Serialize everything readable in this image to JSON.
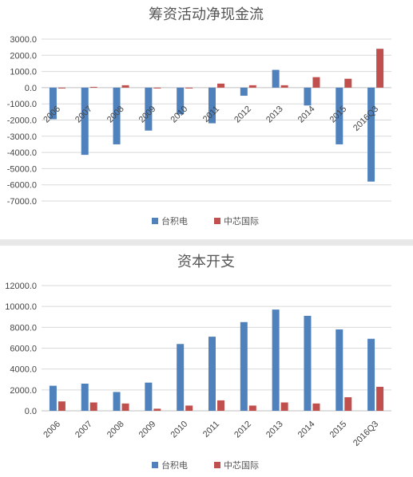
{
  "colors": {
    "tsmc": "#4f81bd",
    "smic": "#c0504d",
    "grid": "#d9d9d9",
    "axis": "#bfbfbf"
  },
  "chart_data": [
    {
      "type": "bar",
      "title": "筹资活动净现金流",
      "categories": [
        "2006",
        "2007",
        "2008",
        "2009",
        "2010",
        "2011",
        "2012",
        "2013",
        "2014",
        "2015",
        "2016Q3"
      ],
      "series": [
        {
          "name": "台积电",
          "values": [
            -1950,
            -4150,
            -3500,
            -2650,
            -1650,
            -2200,
            -500,
            1100,
            -1100,
            -3500,
            -5800
          ]
        },
        {
          "name": "中芯国际",
          "values": [
            -50,
            50,
            150,
            -50,
            -50,
            250,
            150,
            150,
            650,
            550,
            2400
          ]
        }
      ],
      "ylim": [
        -7000,
        3000
      ],
      "yticks": [
        3000,
        2000,
        1000,
        0,
        -1000,
        -2000,
        -3000,
        -4000,
        -5000,
        -6000,
        -7000
      ],
      "ytick_labels": [
        "3000.0",
        "2000.0",
        "1000.0",
        "0.0",
        "-1000.0",
        "-2000.0",
        "-3000.0",
        "-4000.0",
        "-5000.0",
        "-6000.0",
        "-7000.0"
      ],
      "grid": true,
      "legend": "bottom"
    },
    {
      "type": "bar",
      "title": "资本开支",
      "categories": [
        "2006",
        "2007",
        "2008",
        "2009",
        "2010",
        "2011",
        "2012",
        "2013",
        "2014",
        "2015",
        "2016Q3"
      ],
      "series": [
        {
          "name": "台积电",
          "values": [
            2400,
            2600,
            1800,
            2700,
            6400,
            7100,
            8500,
            9700,
            9100,
            7800,
            6900
          ]
        },
        {
          "name": "中芯国际",
          "values": [
            900,
            800,
            700,
            200,
            500,
            1000,
            500,
            800,
            700,
            1300,
            2300
          ]
        }
      ],
      "ylim": [
        0,
        12000
      ],
      "yticks": [
        0,
        2000,
        4000,
        6000,
        8000,
        10000,
        12000
      ],
      "ytick_labels": [
        "0.0",
        "2000.0",
        "4000.0",
        "6000.0",
        "8000.0",
        "10000.0",
        "12000.0"
      ],
      "grid": true,
      "legend": "bottom"
    }
  ]
}
